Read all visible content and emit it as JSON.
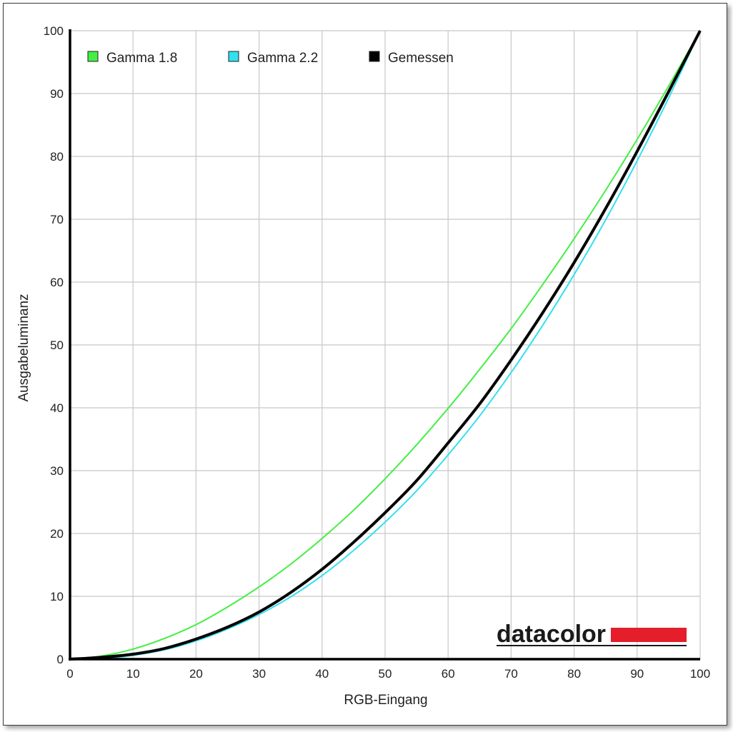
{
  "chart_data": {
    "type": "line",
    "title": "",
    "xlabel": "RGB-Eingang",
    "ylabel": "Ausgabeluminanz",
    "xlim": [
      0,
      100
    ],
    "ylim": [
      0,
      100
    ],
    "xticks": [
      0,
      10,
      20,
      30,
      40,
      50,
      60,
      70,
      80,
      90,
      100
    ],
    "yticks": [
      0,
      10,
      20,
      30,
      40,
      50,
      60,
      70,
      80,
      90,
      100
    ],
    "grid": true,
    "legend_position": "top-left",
    "x": [
      0,
      5,
      10,
      15,
      20,
      25,
      30,
      35,
      40,
      45,
      50,
      55,
      60,
      65,
      70,
      75,
      80,
      85,
      90,
      95,
      100
    ],
    "series": [
      {
        "name": "Gamma 1.8",
        "color": "#44ee44",
        "values": [
          0,
          0.5,
          1.6,
          3.3,
          5.5,
          8.3,
          11.5,
          15.1,
          19.2,
          23.7,
          28.7,
          34.1,
          39.9,
          46.1,
          52.6,
          59.6,
          66.9,
          74.6,
          82.7,
          91.2,
          100
        ]
      },
      {
        "name": "Gamma 2.2",
        "color": "#33e0f0",
        "values": [
          0,
          0.1,
          0.6,
          1.5,
          2.9,
          4.8,
          7.1,
          9.9,
          13.3,
          17.3,
          21.8,
          26.8,
          32.5,
          38.7,
          45.6,
          53.1,
          61.2,
          69.9,
          79.3,
          89.3,
          100
        ]
      },
      {
        "name": "Gemessen",
        "color": "#000000",
        "values": [
          0,
          0.3,
          0.8,
          1.7,
          3.2,
          5.1,
          7.5,
          10.6,
          14.3,
          18.6,
          23.3,
          28.4,
          34.4,
          40.6,
          47.6,
          55.1,
          63.1,
          71.7,
          80.8,
          90.3,
          100
        ]
      }
    ]
  },
  "logo": {
    "text": "datacolor",
    "accent_color": "#e41e2b"
  }
}
